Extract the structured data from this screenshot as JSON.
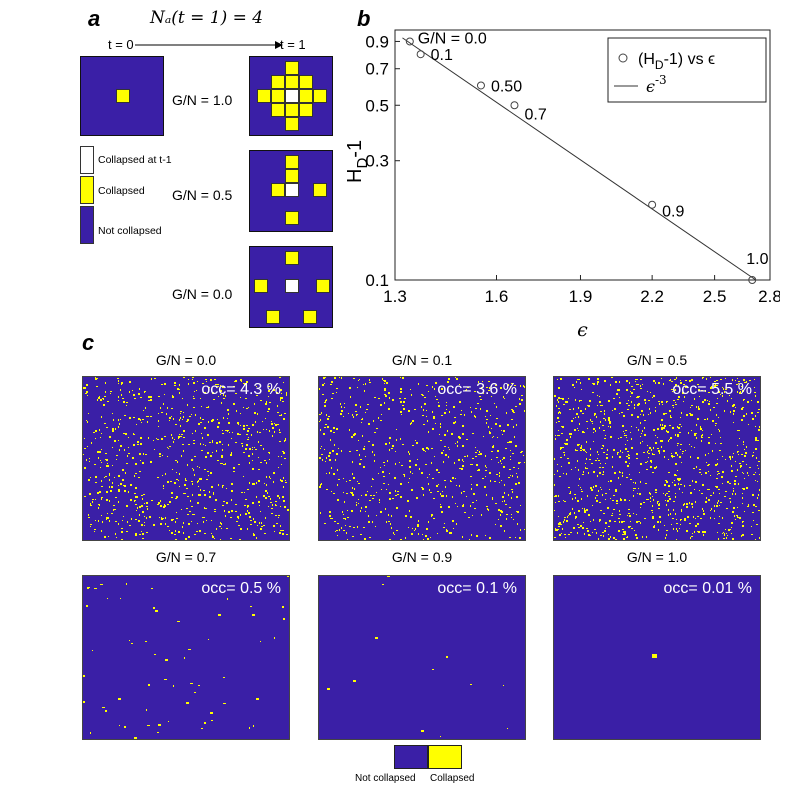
{
  "panel_a": {
    "letter": "a",
    "header_formula": "Nₐ(t = 1) = 4",
    "t0_label": "t = 0",
    "t1_label": "t = 1",
    "rows": [
      {
        "label": "G/N = 1.0"
      },
      {
        "label": "G/N = 0.5"
      },
      {
        "label": "G/N = 0.0"
      }
    ],
    "legend": [
      {
        "label": "Collapsed at t-1",
        "color": "#ffffff"
      },
      {
        "label": "Collapsed",
        "color": "#ffff00"
      },
      {
        "label": "Not collapsed",
        "color": "#3a1fa6"
      }
    ]
  },
  "panel_b": {
    "letter": "b",
    "xlabel": "ϵ",
    "ylabel": "H_D-1",
    "legend_points": "(H_D-1) vs ϵ",
    "legend_line": "ϵ^-3"
  },
  "panel_c": {
    "letter": "c",
    "panels": [
      {
        "title": "G/N = 0.0",
        "occ": "occ= 4.3 %"
      },
      {
        "title": "G/N = 0.1",
        "occ": "occ= 3.6 %"
      },
      {
        "title": "G/N = 0.5",
        "occ": "occ= 5.5 %"
      },
      {
        "title": "G/N = 0.7",
        "occ": "occ= 0.5 %"
      },
      {
        "title": "G/N = 0.9",
        "occ": "occ= 0.1 %"
      },
      {
        "title": "G/N = 1.0",
        "occ": "occ= 0.01 %"
      }
    ],
    "colorbar": {
      "left_label": "Not collapsed",
      "right_label": "Collapsed",
      "left_color": "#3a1fa6",
      "right_color": "#ffff00"
    }
  },
  "chart_data": {
    "type": "scatter",
    "title": "",
    "xlabel": "ϵ",
    "ylabel": "H_D-1",
    "xscale": "log",
    "yscale": "log",
    "xlim": [
      1.3,
      2.8
    ],
    "ylim": [
      0.1,
      1.0
    ],
    "xticks": [
      1.3,
      1.6,
      1.9,
      2.2,
      2.5,
      2.8
    ],
    "yticks": [
      0.1,
      0.3,
      0.5,
      0.7,
      0.9
    ],
    "series": [
      {
        "name": "(H_D-1) vs ϵ",
        "marker": "circle",
        "points": [
          {
            "x": 1.34,
            "y": 0.9,
            "label": "G/N = 0.0"
          },
          {
            "x": 1.37,
            "y": 0.8,
            "label": "0.1"
          },
          {
            "x": 1.55,
            "y": 0.6,
            "label": "0.50"
          },
          {
            "x": 1.66,
            "y": 0.5,
            "label": "0.7"
          },
          {
            "x": 2.2,
            "y": 0.2,
            "label": "0.9"
          },
          {
            "x": 2.7,
            "y": 0.1,
            "label": "1.0"
          }
        ]
      },
      {
        "name": "ϵ^-3",
        "marker": "line",
        "x": [
          1.32,
          2.72
        ],
        "y": [
          0.93,
          0.1
        ]
      }
    ],
    "legend_position": "top-right"
  }
}
